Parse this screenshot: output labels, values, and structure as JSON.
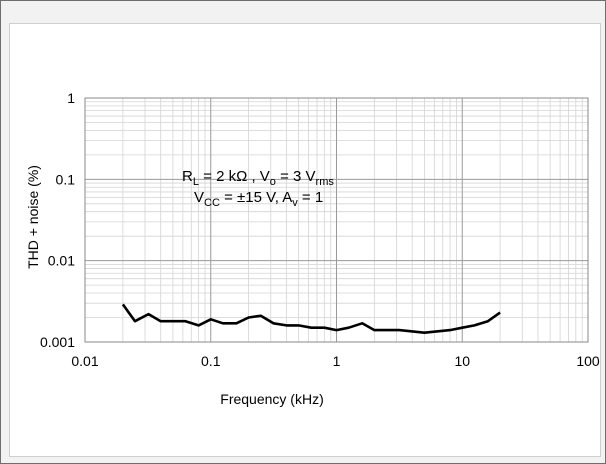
{
  "chart_data": {
    "type": "line",
    "xlabel": "Frequency (kHz)",
    "ylabel": "THD + noise (%)",
    "x_scale": "log",
    "y_scale": "log",
    "xlim": [
      0.01,
      100
    ],
    "ylim": [
      0.001,
      1
    ],
    "x_ticks": [
      "0.01",
      "0.1",
      "1",
      "10",
      "100"
    ],
    "y_ticks": [
      "1",
      "0.1",
      "0.01",
      "0.001"
    ],
    "grid": true,
    "series_color": "#000000",
    "annotation": {
      "line1": {
        "R": "R",
        "R_sub": "L",
        "eq1": " = 2 kΩ , V",
        "V_sub": "o",
        "eq2": " = 3 V",
        "rms": "rms"
      },
      "line2": {
        "V": "V",
        "V_sub": "CC",
        "eq1": " = ±15 V, A",
        "A_sub": "v",
        "eq2": " = 1"
      }
    },
    "x": [
      0.02,
      0.025,
      0.032,
      0.04,
      0.05,
      0.063,
      0.08,
      0.1,
      0.125,
      0.16,
      0.2,
      0.25,
      0.315,
      0.4,
      0.5,
      0.63,
      0.8,
      1.0,
      1.25,
      1.6,
      2.0,
      3.15,
      5.0,
      8.0,
      10.0,
      12.5,
      16.0,
      20.0
    ],
    "values": [
      0.0029,
      0.0018,
      0.0022,
      0.0018,
      0.0018,
      0.0018,
      0.0016,
      0.0019,
      0.0017,
      0.0017,
      0.002,
      0.0021,
      0.0017,
      0.0016,
      0.0016,
      0.0015,
      0.0015,
      0.0014,
      0.0015,
      0.0017,
      0.0014,
      0.0014,
      0.0013,
      0.0014,
      0.0015,
      0.0016,
      0.0018,
      0.0023
    ]
  }
}
